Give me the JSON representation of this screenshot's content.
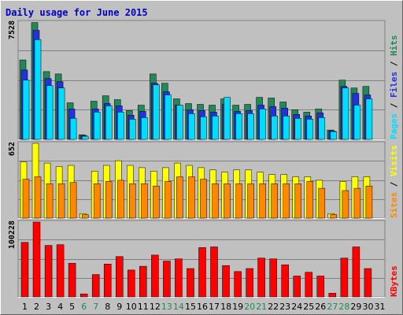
{
  "chart_data": {
    "type": "bar",
    "title": "Daily usage for June 2015",
    "days": [
      "1",
      "2",
      "3",
      "4",
      "5",
      "6",
      "7",
      "8",
      "9",
      "10",
      "11",
      "12",
      "13",
      "14",
      "15",
      "16",
      "17",
      "18",
      "19",
      "20",
      "21",
      "22",
      "23",
      "24",
      "25",
      "26",
      "27",
      "28",
      "29",
      "30",
      "31"
    ],
    "weekend_days": [
      "6",
      "7",
      "13",
      "14",
      "20",
      "21",
      "27",
      "28"
    ],
    "panels": [
      {
        "id": "pages-files-hits",
        "max_label": "7528",
        "ymax": 7528,
        "series": [
          {
            "name": "Hits",
            "color": "#228855",
            "values": [
              5100,
              7500,
              4350,
              4200,
              2350,
              300,
              2450,
              2800,
              2550,
              1850,
              2200,
              4200,
              3600,
              2600,
              2300,
              2250,
              2200,
              2600,
              2200,
              2250,
              2700,
              2650,
              2400,
              1900,
              1750,
              1950,
              600,
              3800,
              3300,
              3400
            ]
          },
          {
            "name": "Files",
            "color": "#2233dd",
            "values": [
              4450,
              7000,
              3900,
              3700,
              1950,
              250,
              1950,
              2300,
              2150,
              1550,
              1800,
              3600,
              3050,
              2200,
              1900,
              1850,
              1750,
              2250,
              1800,
              1850,
              2200,
              2100,
              2000,
              1600,
              1500,
              1700,
              550,
              3400,
              2950,
              2850
            ]
          },
          {
            "name": "Pages",
            "color": "#00ddff",
            "values": [
              3800,
              6400,
              3450,
              3300,
              1350,
              200,
              1750,
              2150,
              1750,
              1300,
              1400,
              3500,
              2850,
              2200,
              1650,
              1450,
              1500,
              2700,
              1650,
              1650,
              1950,
              1500,
              1500,
              1350,
              1300,
              1400,
              500,
              3300,
              2200,
              2600
            ]
          }
        ],
        "label_order": [
          "Pages",
          "Files",
          "Hits"
        ]
      },
      {
        "id": "sites-visits",
        "max_label": "652",
        "ymax": 652,
        "series": [
          {
            "name": "Visits",
            "color": "#ffff00",
            "values": [
              490,
              652,
              480,
              450,
              460,
              40,
              410,
              460,
              500,
              460,
              440,
              410,
              440,
              480,
              460,
              440,
              420,
              400,
              420,
              420,
              400,
              380,
              380,
              360,
              360,
              330,
              40,
              320,
              360,
              360
            ]
          },
          {
            "name": "Sites",
            "color": "#ff8800",
            "values": [
              340,
              360,
              300,
              300,
              310,
              30,
              300,
              320,
              330,
              300,
              300,
              280,
              320,
              360,
              360,
              340,
              300,
              300,
              300,
              300,
              300,
              300,
              300,
              300,
              320,
              260,
              30,
              240,
              260,
              280
            ]
          }
        ],
        "label_order": [
          "Sites",
          "Visits"
        ]
      },
      {
        "id": "kbytes",
        "max_label": "100228",
        "ymax": 100228,
        "series": [
          {
            "name": "KBytes",
            "color": "#ff0000",
            "values": [
              73000,
              100228,
              69000,
              70000,
              45000,
              4000,
              30000,
              44000,
              54000,
              36000,
              41000,
              56000,
              48000,
              51000,
              38000,
              66000,
              67000,
              42000,
              34000,
              38000,
              52000,
              51000,
              43000,
              28000,
              33000,
              28000,
              5000,
              52000,
              67000,
              38000
            ]
          }
        ],
        "label_order": [
          "KBytes"
        ]
      }
    ],
    "colors": {
      "background": "#c0c0c0",
      "grid": "#808080",
      "title": "#0000cc",
      "axis_text": "#000000",
      "weekend_text": "#228855"
    }
  }
}
